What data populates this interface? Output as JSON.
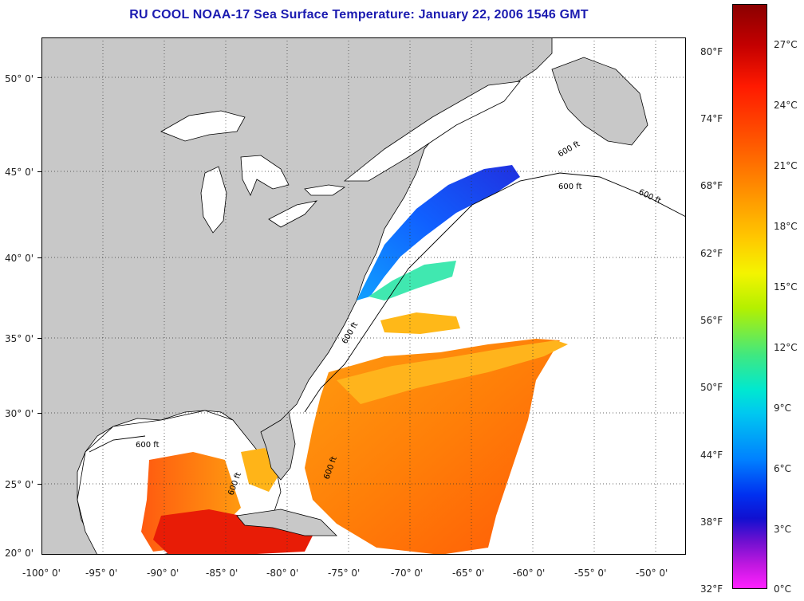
{
  "title": "RU COOL  NOAA-17  Sea Surface Temperature:  January 22, 2006 1546 GMT",
  "lat_labels": [
    "50° 0'",
    "45° 0'",
    "40° 0'",
    "35° 0'",
    "30° 0'",
    "25° 0'",
    "20° 0'"
  ],
  "lon_labels": [
    "-100° 0'",
    "-95° 0'",
    "-90° 0'",
    "-85° 0'",
    "-80° 0'",
    "-75° 0'",
    "-70° 0'",
    "-65° 0'",
    "-60° 0'",
    "-55° 0'",
    "-50° 0'"
  ],
  "depth_labels": [
    "600 ft",
    "600 ft",
    "600 ft",
    "600 ft",
    "600 ft",
    "600 ft",
    "600 ft"
  ],
  "colorbar": {
    "fahrenheit": [
      "80°F",
      "74°F",
      "68°F",
      "62°F",
      "56°F",
      "50°F",
      "44°F",
      "38°F",
      "32°F"
    ],
    "celsius": [
      "27°C",
      "24°C",
      "21°C",
      "18°C",
      "15°C",
      "12°C",
      "9°C",
      "6°C",
      "3°C",
      "0°C"
    ]
  },
  "colors": {
    "land": "#c8c8c8",
    "no_data": "#ffffff",
    "title": "#1b1bb0"
  }
}
